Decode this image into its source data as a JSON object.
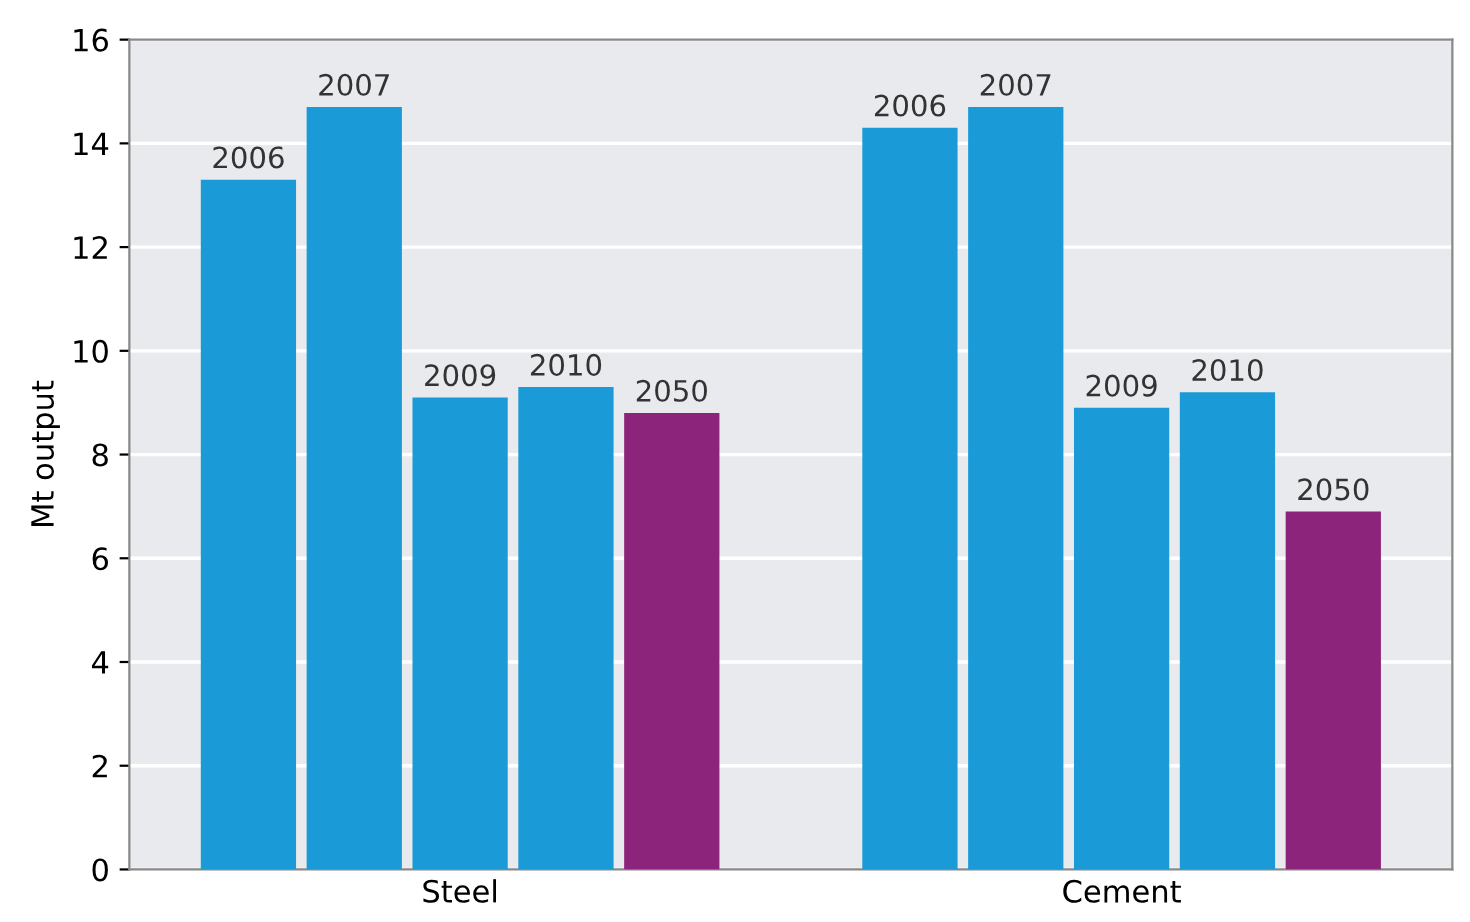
{
  "chart_data": {
    "type": "bar",
    "ylabel": "Mt output",
    "categories": [
      "Steel",
      "Cement"
    ],
    "series": [
      {
        "name": "2006",
        "color": "#1a9ad6",
        "values": [
          13.3,
          14.3
        ]
      },
      {
        "name": "2007",
        "color": "#1a9ad6",
        "values": [
          14.7,
          14.7
        ]
      },
      {
        "name": "2009",
        "color": "#1a9ad6",
        "values": [
          9.1,
          8.9
        ]
      },
      {
        "name": "2010",
        "color": "#1a9ad6",
        "values": [
          9.3,
          9.2
        ]
      },
      {
        "name": "2050",
        "color": "#8b247a",
        "values": [
          8.8,
          6.9
        ]
      }
    ],
    "ylim": [
      0,
      16
    ],
    "yticks": [
      0,
      2,
      4,
      6,
      8,
      10,
      12,
      14,
      16
    ],
    "grid": "y",
    "legend": false
  }
}
